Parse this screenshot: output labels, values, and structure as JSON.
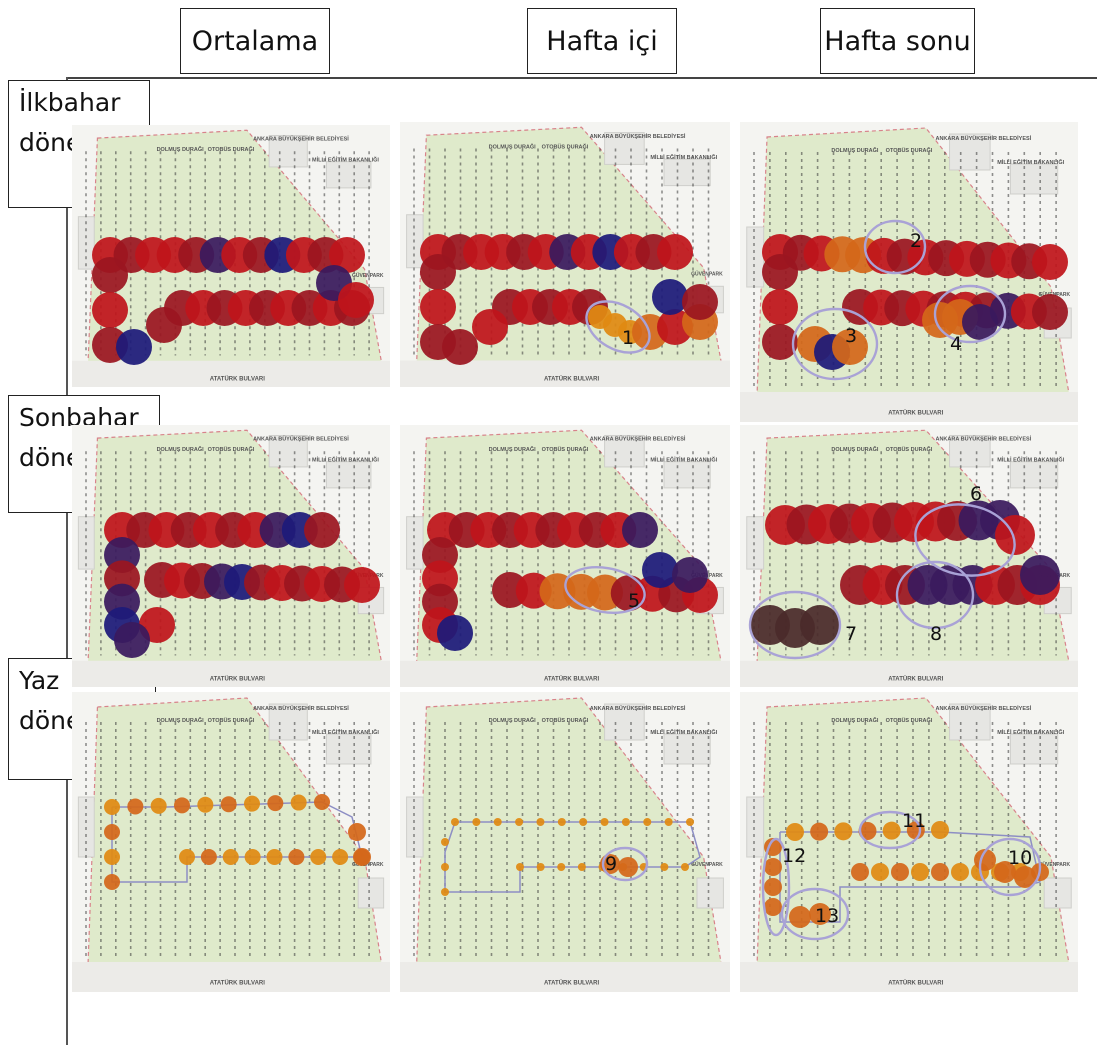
{
  "columns": [
    "Ortalama",
    "Hafta içi",
    "Hafta sonu"
  ],
  "rows": [
    {
      "line1": "İlkbahar",
      "line2": "dönemi"
    },
    {
      "line1": "Sonbahar",
      "line2": "dönemi"
    },
    {
      "line1": "Yaz",
      "line2": "dönemi"
    }
  ],
  "map_labels": {
    "street_bottom": "ATATÜRK BULVARI",
    "stop1": "DOLMUŞ DURAĞI",
    "stop2": "OTOBÜS DURAĞI",
    "building1": "ANKARA BÜYÜKŞEHİR BELEDİYESİ",
    "building2": "MİLLİ EĞİTİM BAKANLIĞI",
    "right_label": "GÜVENPARK"
  },
  "annotations": [
    "1",
    "2",
    "3",
    "4",
    "5",
    "6",
    "7",
    "8",
    "9",
    "10",
    "11",
    "12",
    "13"
  ],
  "colors": {
    "dark_red": "#9b1520",
    "red": "#c0141b",
    "navy": "#1d1a7a",
    "purple": "#3a1a5e",
    "orange": "#d4671a",
    "amber": "#e08a12",
    "ellipse": "#a9a2d6"
  }
}
